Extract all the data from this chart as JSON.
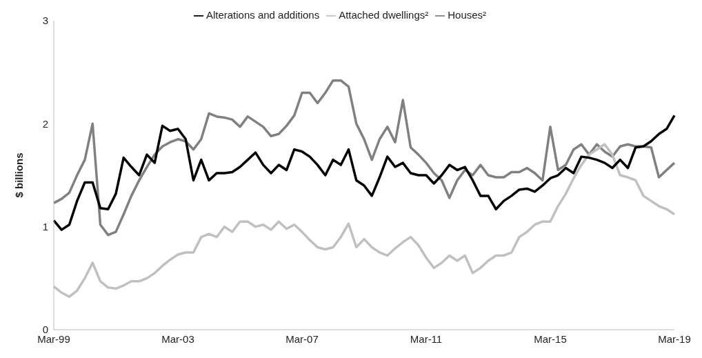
{
  "chart_data": {
    "type": "line",
    "ylabel": "$ billions",
    "ylim": [
      0,
      3
    ],
    "yticks": [
      0,
      1,
      2,
      3
    ],
    "grid": false,
    "legend": "top",
    "marker": "none",
    "line_style": "solid",
    "categories": [
      "Mar-99",
      null,
      null,
      null,
      null,
      null,
      null,
      null,
      null,
      null,
      null,
      null,
      null,
      null,
      null,
      null,
      "Mar-03",
      null,
      null,
      null,
      null,
      null,
      null,
      null,
      null,
      null,
      null,
      null,
      null,
      null,
      null,
      null,
      "Mar-07",
      null,
      null,
      null,
      null,
      null,
      null,
      null,
      null,
      null,
      null,
      null,
      null,
      null,
      null,
      null,
      "Mar-11",
      null,
      null,
      null,
      null,
      null,
      null,
      null,
      null,
      null,
      null,
      null,
      null,
      null,
      null,
      null,
      "Mar-15",
      null,
      null,
      null,
      null,
      null,
      null,
      null,
      null,
      null,
      null,
      null,
      null,
      null,
      null,
      null,
      "Mar-19"
    ],
    "series": [
      {
        "name": "Houses²",
        "color": "#808080",
        "values": [
          1.23,
          1.27,
          1.33,
          1.5,
          1.65,
          2.0,
          1.02,
          0.92,
          0.95,
          1.12,
          1.3,
          1.45,
          1.58,
          1.7,
          1.78,
          1.82,
          1.85,
          1.83,
          1.75,
          1.85,
          2.1,
          2.07,
          2.06,
          2.04,
          1.97,
          2.07,
          2.02,
          1.97,
          1.88,
          1.9,
          1.98,
          2.08,
          2.3,
          2.3,
          2.2,
          2.3,
          2.42,
          2.42,
          2.36,
          2.0,
          1.85,
          1.65,
          1.85,
          1.97,
          1.82,
          2.23,
          1.77,
          1.7,
          1.62,
          1.52,
          1.45,
          1.28,
          1.45,
          1.55,
          1.5,
          1.6,
          1.5,
          1.48,
          1.48,
          1.53,
          1.53,
          1.57,
          1.52,
          1.45,
          1.97,
          1.55,
          1.6,
          1.75,
          1.8,
          1.7,
          1.8,
          1.73,
          1.68,
          1.78,
          1.8,
          1.78,
          1.78,
          1.77,
          1.48,
          1.55,
          1.62
        ]
      },
      {
        "name": "Attached dwellings²",
        "color": "#c0c0c0",
        "values": [
          0.42,
          0.36,
          0.32,
          0.38,
          0.5,
          0.65,
          0.47,
          0.41,
          0.4,
          0.43,
          0.47,
          0.47,
          0.5,
          0.55,
          0.62,
          0.68,
          0.73,
          0.75,
          0.75,
          0.9,
          0.93,
          0.9,
          1.0,
          0.95,
          1.05,
          1.05,
          1.0,
          1.02,
          0.97,
          1.05,
          0.98,
          1.02,
          0.95,
          0.87,
          0.8,
          0.78,
          0.8,
          0.9,
          1.03,
          0.8,
          0.88,
          0.8,
          0.75,
          0.72,
          0.79,
          0.85,
          0.9,
          0.82,
          0.7,
          0.6,
          0.65,
          0.72,
          0.67,
          0.72,
          0.55,
          0.6,
          0.67,
          0.72,
          0.72,
          0.75,
          0.9,
          0.95,
          1.02,
          1.05,
          1.05,
          1.2,
          1.32,
          1.47,
          1.6,
          1.7,
          1.75,
          1.8,
          1.7,
          1.5,
          1.48,
          1.45,
          1.3,
          1.25,
          1.2,
          1.17,
          1.12
        ]
      },
      {
        "name": "Alterations and additions",
        "color": "#000000",
        "values": [
          1.06,
          0.97,
          1.02,
          1.25,
          1.43,
          1.43,
          1.18,
          1.17,
          1.32,
          1.67,
          1.58,
          1.5,
          1.7,
          1.62,
          1.98,
          1.93,
          1.95,
          1.85,
          1.45,
          1.65,
          1.45,
          1.52,
          1.52,
          1.53,
          1.58,
          1.65,
          1.72,
          1.6,
          1.52,
          1.6,
          1.55,
          1.75,
          1.73,
          1.68,
          1.6,
          1.5,
          1.65,
          1.6,
          1.75,
          1.45,
          1.4,
          1.3,
          1.48,
          1.68,
          1.58,
          1.62,
          1.52,
          1.5,
          1.5,
          1.42,
          1.5,
          1.6,
          1.55,
          1.58,
          1.45,
          1.3,
          1.3,
          1.17,
          1.25,
          1.3,
          1.36,
          1.37,
          1.34,
          1.4,
          1.47,
          1.5,
          1.57,
          1.52,
          1.68,
          1.67,
          1.65,
          1.62,
          1.57,
          1.65,
          1.57,
          1.77,
          1.78,
          1.83,
          1.9,
          1.95,
          2.08
        ]
      }
    ]
  }
}
